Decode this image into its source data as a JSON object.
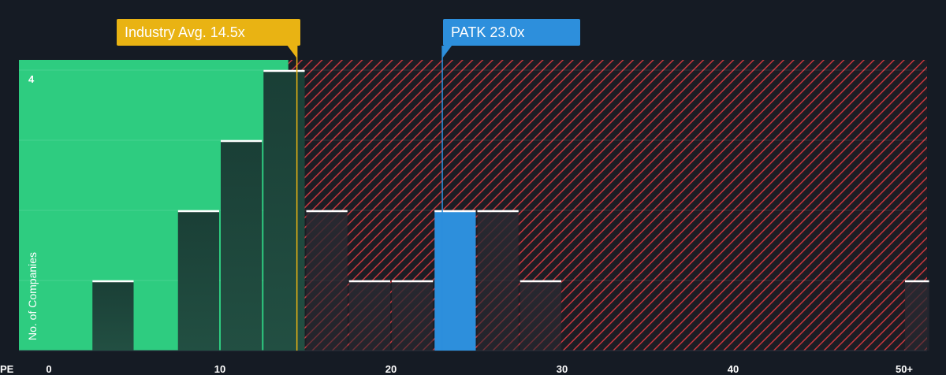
{
  "chart_data": {
    "type": "bar",
    "xlabel": "PE",
    "ylabel": "No. of Companies",
    "xlim": [
      0,
      51
    ],
    "ylim": [
      0,
      4
    ],
    "x_ticks": [
      "0",
      "10",
      "20",
      "30",
      "40",
      "50+"
    ],
    "y_ticks": [
      "4"
    ],
    "bins": [
      {
        "x0": 2.5,
        "x1": 5.0,
        "count": 1
      },
      {
        "x0": 7.5,
        "x1": 10.0,
        "count": 2
      },
      {
        "x0": 10.0,
        "x1": 12.5,
        "count": 3
      },
      {
        "x0": 12.5,
        "x1": 15.0,
        "count": 4
      },
      {
        "x0": 15.0,
        "x1": 17.5,
        "count": 2
      },
      {
        "x0": 17.5,
        "x1": 20.0,
        "count": 1
      },
      {
        "x0": 20.0,
        "x1": 22.5,
        "count": 1
      },
      {
        "x0": 22.5,
        "x1": 25.0,
        "count": 2,
        "highlight": true
      },
      {
        "x0": 25.0,
        "x1": 27.5,
        "count": 2
      },
      {
        "x0": 27.5,
        "x1": 30.0,
        "count": 1
      },
      {
        "x0": 50.0,
        "x1": 51.5,
        "count": 1
      }
    ],
    "industry_avg": {
      "value": 14.5,
      "label": "Industry Avg. 14.5x"
    },
    "company": {
      "value": 23.0,
      "label": "PATK 23.0x"
    },
    "colors": {
      "background": "#151b24",
      "green_zone": "#2ecc80",
      "red_hatch": "#c8383e",
      "bar_dark": "#1d3b33",
      "bar_highlight": "#2d8fdc",
      "industry": "#e9b313",
      "company": "#2d8fdc"
    }
  }
}
